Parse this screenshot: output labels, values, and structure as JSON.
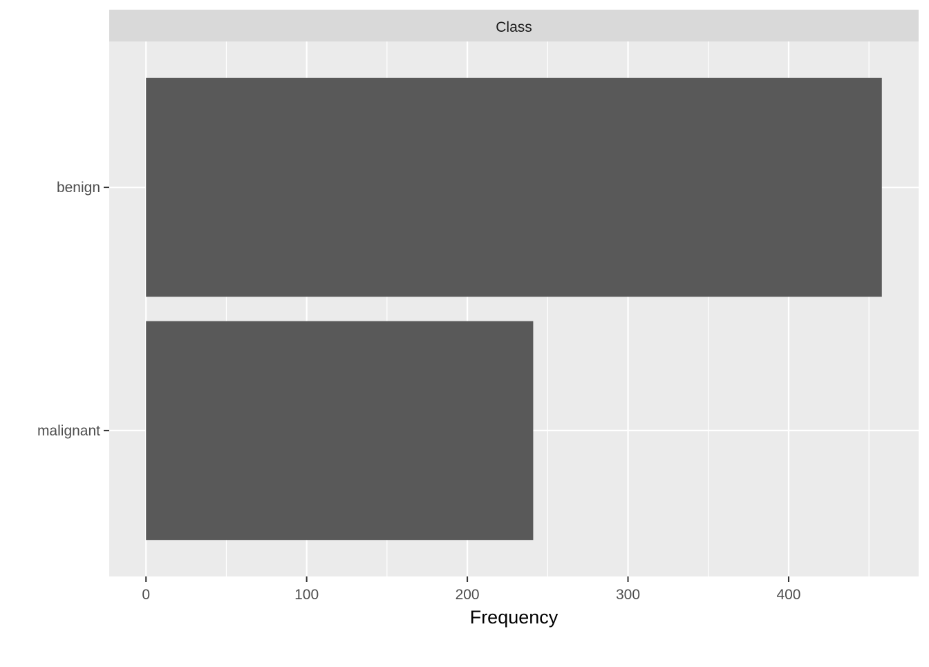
{
  "chart_data": {
    "type": "bar",
    "orientation": "horizontal",
    "facet_label": "Class",
    "categories": [
      "benign",
      "malignant"
    ],
    "values": [
      458,
      241
    ],
    "xlabel": "Frequency",
    "ylabel": "",
    "x_ticks": [
      "0",
      "100",
      "200",
      "300",
      "400"
    ],
    "xlim": [
      -22.9,
      480.9
    ],
    "grid": true,
    "legend": "none",
    "colors": {
      "bar": "#595959",
      "panel_background": "#EBEBEB",
      "strip_background": "#D9D9D9",
      "gridline": "#FFFFFF",
      "tick_text": "#4D4D4D",
      "axis_title": "#000000",
      "strip_text": "#1A1A1A",
      "tick_mark": "#333333"
    }
  }
}
